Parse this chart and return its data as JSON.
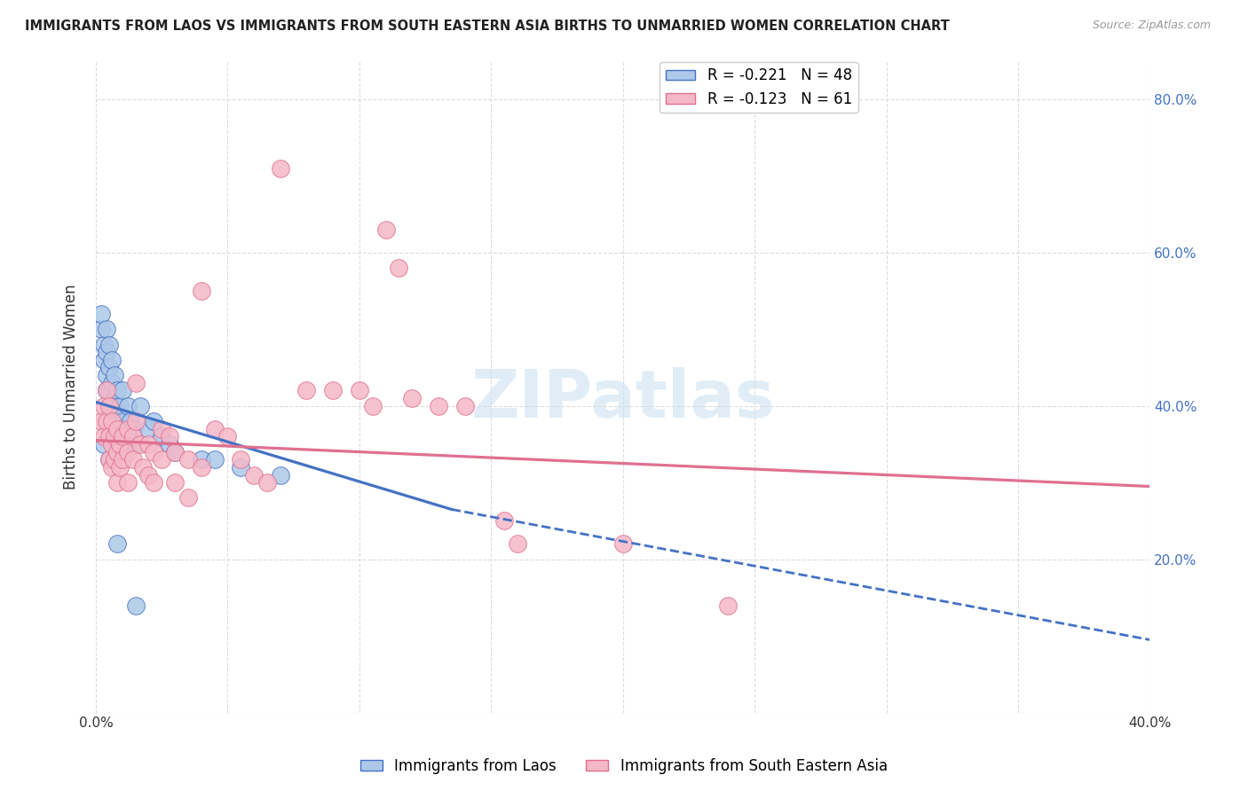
{
  "title": "IMMIGRANTS FROM LAOS VS IMMIGRANTS FROM SOUTH EASTERN ASIA BIRTHS TO UNMARRIED WOMEN CORRELATION CHART",
  "source": "Source: ZipAtlas.com",
  "ylabel": "Births to Unmarried Women",
  "xlim": [
    0.0,
    0.4
  ],
  "ylim": [
    0.0,
    0.85
  ],
  "xticks": [
    0.0,
    0.05,
    0.1,
    0.15,
    0.2,
    0.25,
    0.3,
    0.35,
    0.4
  ],
  "yticks_right": [
    0.0,
    0.2,
    0.4,
    0.6,
    0.8
  ],
  "yticklabels_right": [
    "",
    "20.0%",
    "40.0%",
    "60.0%",
    "80.0%"
  ],
  "blue_R": -0.221,
  "blue_N": 48,
  "pink_R": -0.123,
  "pink_N": 61,
  "blue_color": "#adc8e8",
  "pink_color": "#f5b8c8",
  "blue_line_color": "#4472c4",
  "pink_line_color": "#e07090",
  "blue_line_solid": [
    [
      0.0,
      0.405
    ],
    [
      0.135,
      0.265
    ]
  ],
  "blue_line_dash": [
    [
      0.135,
      0.265
    ],
    [
      0.4,
      0.095
    ]
  ],
  "pink_line": [
    [
      0.0,
      0.355
    ],
    [
      0.4,
      0.295
    ]
  ],
  "blue_scatter": [
    [
      0.002,
      0.5
    ],
    [
      0.002,
      0.52
    ],
    [
      0.003,
      0.48
    ],
    [
      0.003,
      0.46
    ],
    [
      0.004,
      0.5
    ],
    [
      0.004,
      0.47
    ],
    [
      0.004,
      0.44
    ],
    [
      0.004,
      0.42
    ],
    [
      0.005,
      0.48
    ],
    [
      0.005,
      0.45
    ],
    [
      0.005,
      0.42
    ],
    [
      0.005,
      0.4
    ],
    [
      0.005,
      0.37
    ],
    [
      0.006,
      0.46
    ],
    [
      0.006,
      0.43
    ],
    [
      0.006,
      0.4
    ],
    [
      0.006,
      0.37
    ],
    [
      0.007,
      0.44
    ],
    [
      0.007,
      0.41
    ],
    [
      0.007,
      0.38
    ],
    [
      0.007,
      0.36
    ],
    [
      0.008,
      0.42
    ],
    [
      0.008,
      0.39
    ],
    [
      0.008,
      0.36
    ],
    [
      0.009,
      0.4
    ],
    [
      0.009,
      0.37
    ],
    [
      0.01,
      0.42
    ],
    [
      0.01,
      0.38
    ],
    [
      0.01,
      0.35
    ],
    [
      0.012,
      0.4
    ],
    [
      0.012,
      0.36
    ],
    [
      0.013,
      0.38
    ],
    [
      0.014,
      0.37
    ],
    [
      0.015,
      0.35
    ],
    [
      0.017,
      0.4
    ],
    [
      0.02,
      0.37
    ],
    [
      0.022,
      0.38
    ],
    [
      0.025,
      0.36
    ],
    [
      0.028,
      0.35
    ],
    [
      0.03,
      0.34
    ],
    [
      0.04,
      0.33
    ],
    [
      0.045,
      0.33
    ],
    [
      0.055,
      0.32
    ],
    [
      0.07,
      0.31
    ],
    [
      0.008,
      0.22
    ],
    [
      0.015,
      0.14
    ],
    [
      0.003,
      0.35
    ],
    [
      0.005,
      0.33
    ]
  ],
  "pink_scatter": [
    [
      0.002,
      0.38
    ],
    [
      0.003,
      0.4
    ],
    [
      0.003,
      0.36
    ],
    [
      0.004,
      0.42
    ],
    [
      0.004,
      0.38
    ],
    [
      0.005,
      0.4
    ],
    [
      0.005,
      0.36
    ],
    [
      0.005,
      0.33
    ],
    [
      0.006,
      0.38
    ],
    [
      0.006,
      0.35
    ],
    [
      0.006,
      0.32
    ],
    [
      0.007,
      0.36
    ],
    [
      0.007,
      0.33
    ],
    [
      0.008,
      0.37
    ],
    [
      0.008,
      0.34
    ],
    [
      0.008,
      0.3
    ],
    [
      0.009,
      0.35
    ],
    [
      0.009,
      0.32
    ],
    [
      0.01,
      0.36
    ],
    [
      0.01,
      0.33
    ],
    [
      0.012,
      0.37
    ],
    [
      0.012,
      0.34
    ],
    [
      0.012,
      0.3
    ],
    [
      0.014,
      0.36
    ],
    [
      0.014,
      0.33
    ],
    [
      0.015,
      0.43
    ],
    [
      0.015,
      0.38
    ],
    [
      0.017,
      0.35
    ],
    [
      0.018,
      0.32
    ],
    [
      0.02,
      0.35
    ],
    [
      0.02,
      0.31
    ],
    [
      0.022,
      0.34
    ],
    [
      0.022,
      0.3
    ],
    [
      0.025,
      0.37
    ],
    [
      0.025,
      0.33
    ],
    [
      0.028,
      0.36
    ],
    [
      0.03,
      0.34
    ],
    [
      0.03,
      0.3
    ],
    [
      0.035,
      0.33
    ],
    [
      0.035,
      0.28
    ],
    [
      0.04,
      0.55
    ],
    [
      0.04,
      0.32
    ],
    [
      0.045,
      0.37
    ],
    [
      0.05,
      0.36
    ],
    [
      0.055,
      0.33
    ],
    [
      0.06,
      0.31
    ],
    [
      0.065,
      0.3
    ],
    [
      0.07,
      0.71
    ],
    [
      0.08,
      0.42
    ],
    [
      0.09,
      0.42
    ],
    [
      0.1,
      0.42
    ],
    [
      0.105,
      0.4
    ],
    [
      0.11,
      0.63
    ],
    [
      0.115,
      0.58
    ],
    [
      0.12,
      0.41
    ],
    [
      0.13,
      0.4
    ],
    [
      0.14,
      0.4
    ],
    [
      0.155,
      0.25
    ],
    [
      0.16,
      0.22
    ],
    [
      0.2,
      0.22
    ],
    [
      0.24,
      0.14
    ]
  ],
  "watermark_text": "ZIPatlas",
  "background_color": "#ffffff",
  "grid_color": "#dddddd"
}
